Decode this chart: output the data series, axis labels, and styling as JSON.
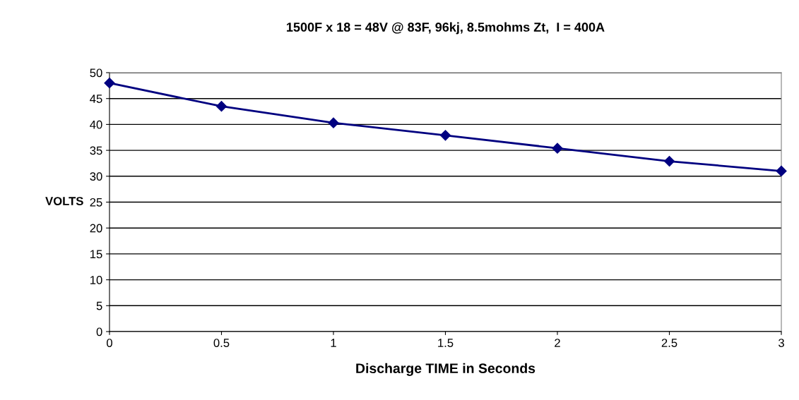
{
  "chart_data": {
    "type": "line",
    "title": "1500F x 18 = 48V @ 83F, 96kj, 8.5mohms Zt,  I = 400A",
    "xlabel": "Discharge TIME in Seconds",
    "ylabel": "VOLTS",
    "x": [
      0,
      0.5,
      1,
      1.5,
      2,
      2.5,
      3
    ],
    "series": [
      {
        "color": "#000080",
        "values": [
          48.0,
          43.5,
          40.3,
          37.9,
          35.4,
          32.9,
          31.0
        ]
      }
    ],
    "xlim": [
      0,
      3
    ],
    "xticks": [
      0,
      0.5,
      1,
      1.5,
      2,
      2.5,
      3
    ],
    "ylim": [
      0,
      50
    ],
    "yticks": [
      0,
      5,
      10,
      15,
      20,
      25,
      30,
      35,
      40,
      45,
      50
    ],
    "grid": "y",
    "legend": false,
    "marker": "diamond",
    "line_style": "solid"
  }
}
